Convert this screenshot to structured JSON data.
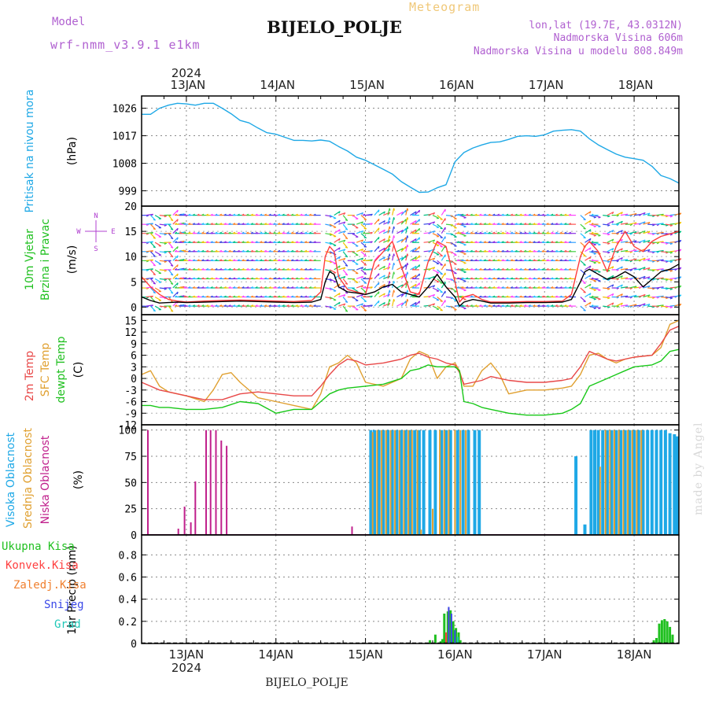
{
  "header": {
    "meteogram_label": "Meteogram",
    "station": "BIJELO_POLJE",
    "model_label": "Model",
    "model_name": "wrf-nmm_v3.9.1 e1km",
    "lonlat": "lon,lat (19.7E, 43.0312N)",
    "altitude": "Nadmorska Visina 606m",
    "model_altitude": "Nadmorska Visina u modelu 808.849m",
    "footer_station": "BIJELO_POLJE",
    "made_by": "made by Angel"
  },
  "time_axis": {
    "year": "2024",
    "day_labels": [
      "13JAN",
      "14JAN",
      "15JAN",
      "16JAN",
      "17JAN",
      "18JAN"
    ],
    "start_day": 12.5,
    "end_day": 18.5
  },
  "colors": {
    "pressure": "#1ea8e6",
    "wind_speed": "#000000",
    "wind_gust": "#ff3c3c",
    "temp2m": "#e84848",
    "sfc_temp": "#e0a030",
    "dewpt": "#18c818",
    "high_cloud": "#1ea8e6",
    "mid_cloud": "#e0a030",
    "low_cloud": "#c0208c",
    "total_precip": "#20c020",
    "conv_precip": "#ff4040",
    "frz_precip": "#f08030",
    "snow": "#3a48e8",
    "grad": "#20c8b8"
  },
  "chart_data": [
    {
      "type": "line",
      "panel": "pressure",
      "ylabel_1": "Pritisak na nivou mora",
      "ylabel_2": "(hPa)",
      "yticks": [
        999,
        1008,
        1017,
        1026
      ],
      "ylim": [
        994,
        1030
      ],
      "series": [
        {
          "key": "pressure",
          "x": [
            12.5,
            12.6,
            12.7,
            12.8,
            12.9,
            13.0,
            13.1,
            13.2,
            13.3,
            13.4,
            13.5,
            13.6,
            13.7,
            13.8,
            13.9,
            14.0,
            14.1,
            14.2,
            14.3,
            14.4,
            14.5,
            14.6,
            14.7,
            14.8,
            14.9,
            15.0,
            15.1,
            15.2,
            15.3,
            15.4,
            15.5,
            15.6,
            15.7,
            15.8,
            15.9,
            16.0,
            16.1,
            16.2,
            16.3,
            16.4,
            16.5,
            16.6,
            16.7,
            16.8,
            16.9,
            17.0,
            17.1,
            17.2,
            17.3,
            17.4,
            17.5,
            17.6,
            17.7,
            17.8,
            17.9,
            18.0,
            18.1,
            18.2,
            18.3,
            18.4,
            18.5
          ],
          "values": [
            1024,
            1024,
            1026,
            1027,
            1027.6,
            1027.4,
            1027,
            1027.6,
            1027.6,
            1026,
            1024.2,
            1022,
            1021.2,
            1019.5,
            1018,
            1017.5,
            1016.5,
            1015.5,
            1015.5,
            1015.3,
            1015.6,
            1015.2,
            1013.5,
            1012,
            1010,
            1009,
            1007.5,
            1006,
            1004.5,
            1002,
            1000.2,
            998.5,
            998.6,
            1000,
            1001,
            1008.5,
            1011.5,
            1013,
            1014,
            1014.8,
            1015,
            1015.8,
            1016.8,
            1017,
            1016.8,
            1017.3,
            1018.5,
            1018.8,
            1019,
            1018.5,
            1016,
            1014,
            1012.5,
            1011,
            1010,
            1009.5,
            1009,
            1007,
            1004,
            1003,
            1001.5
          ]
        }
      ]
    },
    {
      "type": "line",
      "panel": "wind",
      "ylabel_1": "10m Vjetar",
      "ylabel_2": "Brzina i Pravac",
      "ylabel_3": "(m/s)",
      "compass": [
        "N",
        "W",
        "E",
        "S"
      ],
      "yticks": [
        0,
        5,
        10,
        15,
        20
      ],
      "ylim": [
        -1.5,
        20
      ],
      "series": [
        {
          "key": "wind_speed",
          "x": [
            12.5,
            12.6,
            12.7,
            12.8,
            12.9,
            13.0,
            13.2,
            13.4,
            13.6,
            13.8,
            14.0,
            14.2,
            14.4,
            14.5,
            14.55,
            14.6,
            14.65,
            14.7,
            14.8,
            14.9,
            15.0,
            15.1,
            15.2,
            15.3,
            15.4,
            15.5,
            15.6,
            15.7,
            15.8,
            15.9,
            16.0,
            16.05,
            16.1,
            16.2,
            16.3,
            16.4,
            16.6,
            16.8,
            17.0,
            17.2,
            17.3,
            17.4,
            17.45,
            17.5,
            17.6,
            17.7,
            17.8,
            17.9,
            18.0,
            18.1,
            18.2,
            18.3,
            18.4,
            18.5
          ],
          "values": [
            2,
            1.3,
            0.8,
            0.9,
            1.0,
            0.9,
            1.0,
            1.1,
            1.2,
            1.1,
            1.0,
            0.9,
            1.0,
            1.5,
            5,
            7,
            6.5,
            4,
            3,
            2.8,
            2.5,
            3,
            4,
            4.5,
            3,
            2.5,
            2,
            4,
            6.5,
            4,
            2,
            0.2,
            1,
            1.5,
            1.2,
            0.8,
            0.8,
            0.9,
            0.9,
            1.0,
            1.5,
            5,
            7,
            7.5,
            6.5,
            5.5,
            6,
            7,
            6,
            4,
            5.5,
            7,
            7.5,
            8.5
          ]
        },
        {
          "key": "wind_gust",
          "x": [
            12.5,
            12.6,
            12.7,
            12.8,
            12.9,
            13.0,
            13.2,
            13.4,
            13.6,
            13.8,
            14.0,
            14.2,
            14.4,
            14.5,
            14.55,
            14.6,
            14.65,
            14.7,
            14.8,
            14.9,
            15.0,
            15.1,
            15.2,
            15.3,
            15.4,
            15.5,
            15.6,
            15.7,
            15.8,
            15.9,
            16.0,
            16.05,
            16.1,
            16.2,
            16.3,
            16.4,
            16.6,
            16.8,
            17.0,
            17.2,
            17.3,
            17.4,
            17.45,
            17.5,
            17.6,
            17.7,
            17.8,
            17.9,
            18.0,
            18.1,
            18.2,
            18.3,
            18.4,
            18.5
          ],
          "values": [
            6,
            4,
            2.5,
            1.5,
            1.2,
            1.0,
            1.2,
            1.3,
            1.4,
            1.3,
            1.2,
            1.1,
            1.3,
            3,
            10,
            12,
            11,
            6,
            3.5,
            3,
            2.5,
            9,
            11,
            13,
            8,
            3,
            2.5,
            9,
            13,
            12,
            5,
            1,
            2,
            2.5,
            1.5,
            1.0,
            1.0,
            1.1,
            1.1,
            1.2,
            2.5,
            10,
            12,
            13,
            11,
            7,
            12,
            15,
            12,
            11,
            13,
            14,
            14.5,
            15
          ]
        }
      ]
    },
    {
      "type": "line",
      "panel": "temperature",
      "ylabel_1": "2m Temp",
      "ylabel_2": "SFC Temp",
      "ylabel_3": "dewpt Temp",
      "ylabel_4": "(C)",
      "yticks": [
        -12,
        -9,
        -6,
        -3,
        0,
        3,
        6,
        9,
        12,
        15
      ],
      "ylim": [
        -12,
        16.5
      ],
      "series": [
        {
          "key": "temp2m",
          "x": [
            12.5,
            12.6,
            12.7,
            12.8,
            13.0,
            13.2,
            13.4,
            13.6,
            13.8,
            14.0,
            14.2,
            14.4,
            14.5,
            14.6,
            14.7,
            14.8,
            14.9,
            15.0,
            15.2,
            15.4,
            15.5,
            15.6,
            15.7,
            15.8,
            15.9,
            16.0,
            16.05,
            16.1,
            16.2,
            16.3,
            16.4,
            16.6,
            16.8,
            17.0,
            17.2,
            17.3,
            17.4,
            17.5,
            17.6,
            17.7,
            17.8,
            17.9,
            18.0,
            18.2,
            18.3,
            18.4,
            18.5
          ],
          "values": [
            -1,
            -2,
            -3,
            -3.5,
            -4.5,
            -5.5,
            -5.5,
            -4,
            -3.5,
            -4,
            -4.5,
            -4.5,
            -2,
            1,
            3.5,
            5,
            4.5,
            3.5,
            4,
            5,
            6,
            6.5,
            5.5,
            5,
            4,
            3.5,
            1.5,
            -1.5,
            -1,
            -0.5,
            0.5,
            -0.5,
            -1,
            -1,
            -0.5,
            0,
            3,
            7,
            6,
            5,
            4.5,
            5,
            5.5,
            6,
            9,
            12.5,
            13.5
          ]
        },
        {
          "key": "sfc_temp",
          "x": [
            12.5,
            12.6,
            12.7,
            12.8,
            13.0,
            13.2,
            13.3,
            13.4,
            13.5,
            13.6,
            13.8,
            14.0,
            14.2,
            14.4,
            14.5,
            14.6,
            14.7,
            14.8,
            14.9,
            15.0,
            15.2,
            15.4,
            15.5,
            15.6,
            15.7,
            15.8,
            15.9,
            16.0,
            16.05,
            16.1,
            16.2,
            16.3,
            16.4,
            16.5,
            16.6,
            16.8,
            17.0,
            17.2,
            17.3,
            17.4,
            17.5,
            17.6,
            17.7,
            17.8,
            17.9,
            18.0,
            18.2,
            18.3,
            18.4,
            18.5
          ],
          "values": [
            1,
            2,
            -2,
            -3.5,
            -4.5,
            -6,
            -3,
            1,
            1.5,
            -1,
            -5,
            -6,
            -7,
            -8,
            -4,
            3,
            4,
            6,
            4,
            -1,
            -2,
            0,
            5,
            7,
            6,
            0,
            3,
            4,
            2,
            -2,
            -2,
            2,
            4,
            1,
            -4,
            -3,
            -3,
            -2.5,
            -2,
            1,
            6,
            6.5,
            5,
            4,
            5,
            5.5,
            6,
            8,
            14,
            15
          ]
        },
        {
          "key": "dewpt",
          "x": [
            12.5,
            12.6,
            12.7,
            12.8,
            13.0,
            13.2,
            13.4,
            13.6,
            13.8,
            14.0,
            14.2,
            14.4,
            14.5,
            14.6,
            14.7,
            14.8,
            15.0,
            15.2,
            15.4,
            15.5,
            15.6,
            15.7,
            15.8,
            15.9,
            16.0,
            16.05,
            16.1,
            16.2,
            16.3,
            16.4,
            16.5,
            16.6,
            16.8,
            17.0,
            17.2,
            17.3,
            17.4,
            17.5,
            17.6,
            17.7,
            17.8,
            17.9,
            18.0,
            18.2,
            18.3,
            18.4,
            18.5
          ],
          "values": [
            -7,
            -7,
            -7.5,
            -7.5,
            -8,
            -8,
            -7.5,
            -6,
            -6.5,
            -9,
            -8,
            -8,
            -6,
            -4,
            -3,
            -2.5,
            -2,
            -1.5,
            0,
            2,
            2.5,
            3.5,
            3,
            3,
            3,
            2,
            -6,
            -6.5,
            -7.5,
            -8,
            -8.5,
            -9,
            -9.5,
            -9.5,
            -9,
            -8,
            -6.5,
            -2,
            -1,
            0,
            1,
            2,
            3,
            3.5,
            4.5,
            7,
            7.5
          ]
        }
      ]
    },
    {
      "type": "bar",
      "panel": "clouds",
      "ylabel_1": "Visoka Oblacnost",
      "ylabel_2": "Srednja Oblacnost",
      "ylabel_3": "Niska Oblacnost",
      "ylabel_4": "(%)",
      "yticks": [
        0,
        25,
        50,
        75,
        100
      ],
      "ylim": [
        0,
        105
      ],
      "series": [
        {
          "key": "low_cloud",
          "x": [
            12.57,
            12.91,
            12.98,
            13.05,
            13.1,
            13.22,
            13.27,
            13.33,
            13.39,
            13.45,
            14.85
          ],
          "values": [
            100,
            6,
            27,
            12,
            51,
            100,
            100,
            100,
            90,
            85,
            8
          ]
        },
        {
          "key": "high_cloud",
          "x": [
            15.06,
            15.1,
            15.15,
            15.2,
            15.25,
            15.3,
            15.35,
            15.4,
            15.45,
            15.5,
            15.55,
            15.6,
            15.65,
            15.72,
            15.78,
            15.85,
            15.9,
            15.95,
            16.03,
            16.09,
            16.15,
            16.22,
            16.27,
            17.35,
            17.45,
            17.52,
            17.56,
            17.6,
            17.65,
            17.7,
            17.75,
            17.8,
            17.85,
            17.9,
            17.95,
            18.0,
            18.05,
            18.1,
            18.15,
            18.2,
            18.25,
            18.3,
            18.35,
            18.4,
            18.45,
            18.48
          ],
          "values": [
            100,
            100,
            100,
            100,
            100,
            100,
            100,
            100,
            100,
            100,
            100,
            100,
            100,
            100,
            100,
            100,
            100,
            100,
            100,
            100,
            100,
            100,
            100,
            75,
            10,
            100,
            100,
            100,
            100,
            100,
            100,
            100,
            100,
            100,
            100,
            100,
            100,
            100,
            100,
            100,
            100,
            100,
            100,
            97,
            96,
            94
          ]
        },
        {
          "key": "mid_cloud",
          "x": [
            15.08,
            15.13,
            15.18,
            15.23,
            15.28,
            15.33,
            15.38,
            15.43,
            15.48,
            15.52,
            15.58,
            15.62,
            15.75,
            15.83,
            15.88,
            15.93,
            16.0,
            16.06,
            16.12,
            17.62,
            17.68,
            17.73,
            17.78,
            17.83,
            17.88,
            17.93,
            17.98,
            18.03,
            18.08
          ],
          "values": [
            98,
            100,
            100,
            100,
            100,
            100,
            100,
            100,
            100,
            100,
            100,
            5,
            25,
            100,
            100,
            100,
            100,
            100,
            100,
            65,
            100,
            100,
            100,
            100,
            100,
            100,
            100,
            100,
            100
          ]
        }
      ]
    },
    {
      "type": "bar",
      "panel": "precipitation",
      "ylabel_1": "1hr Precip",
      "ylabel_2": "(mm)",
      "legend": [
        "Ukupna Kisa",
        "Konvek.Kisa",
        "Zaledj.Kisa",
        "Snijeg",
        "Grad"
      ],
      "yticks": [
        0,
        0.2,
        0.4,
        0.6,
        0.8
      ],
      "ylim": [
        0,
        0.98
      ],
      "series": [
        {
          "key": "total_precip",
          "x": [
            15.72,
            15.78,
            15.84,
            15.86,
            15.88,
            15.92,
            15.95,
            15.98,
            16.01,
            16.04,
            16.06,
            18.22,
            18.25,
            18.28,
            18.31,
            18.34,
            18.37,
            18.4,
            18.43
          ],
          "values": [
            0.03,
            0.08,
            0.02,
            0.04,
            0.27,
            0.29,
            0.3,
            0.2,
            0.14,
            0.1,
            0.03,
            0.03,
            0.05,
            0.18,
            0.21,
            0.22,
            0.2,
            0.15,
            0.08
          ]
        },
        {
          "key": "conv_precip",
          "x": [
            15.9,
            15.93
          ],
          "values": [
            0.1,
            0.32
          ]
        },
        {
          "key": "snow",
          "x": [
            15.93,
            15.96,
            16.0
          ],
          "values": [
            0.33,
            0.27,
            0.12
          ]
        },
        {
          "key": "grad",
          "x": [
            16.03
          ],
          "values": [
            0.06
          ]
        }
      ]
    }
  ]
}
